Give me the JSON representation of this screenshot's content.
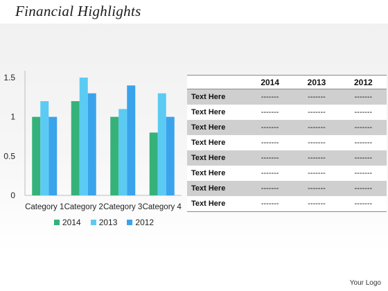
{
  "slide": {
    "title": "Financial Highlights",
    "logo": "Your Logo"
  },
  "colors": {
    "2014": "#35b27a",
    "2013": "#5ccbf3",
    "2012": "#3aa3ec"
  },
  "chart_data": {
    "type": "bar",
    "categories": [
      "Category 1",
      "Category 2",
      "Category 3",
      "Category 4"
    ],
    "series": [
      {
        "name": "2014",
        "values": [
          1.0,
          1.2,
          1.0,
          0.8
        ]
      },
      {
        "name": "2013",
        "values": [
          1.2,
          1.5,
          1.1,
          1.3
        ]
      },
      {
        "name": "2012",
        "values": [
          1.0,
          1.3,
          1.4,
          1.0
        ]
      }
    ],
    "yticks": [
      "0",
      "0.5",
      "1",
      "1.5"
    ],
    "ylim": [
      0,
      1.5
    ],
    "grid": false,
    "legend": "bottom"
  },
  "table": {
    "headers": [
      "",
      "2014",
      "2013",
      "2012"
    ],
    "rows": [
      [
        "Text Here",
        "-------",
        "-------",
        "-------"
      ],
      [
        "Text Here",
        "-------",
        "-------",
        "-------"
      ],
      [
        "Text Here",
        "-------",
        "-------",
        "-------"
      ],
      [
        "Text Here",
        "-------",
        "-------",
        "-------"
      ],
      [
        "Text Here",
        "-------",
        "-------",
        "-------"
      ],
      [
        "Text Here",
        "-------",
        "-------",
        "-------"
      ],
      [
        "Text Here",
        "-------",
        "-------",
        "-------"
      ],
      [
        "Text Here",
        "-------",
        "-------",
        "-------"
      ]
    ]
  }
}
